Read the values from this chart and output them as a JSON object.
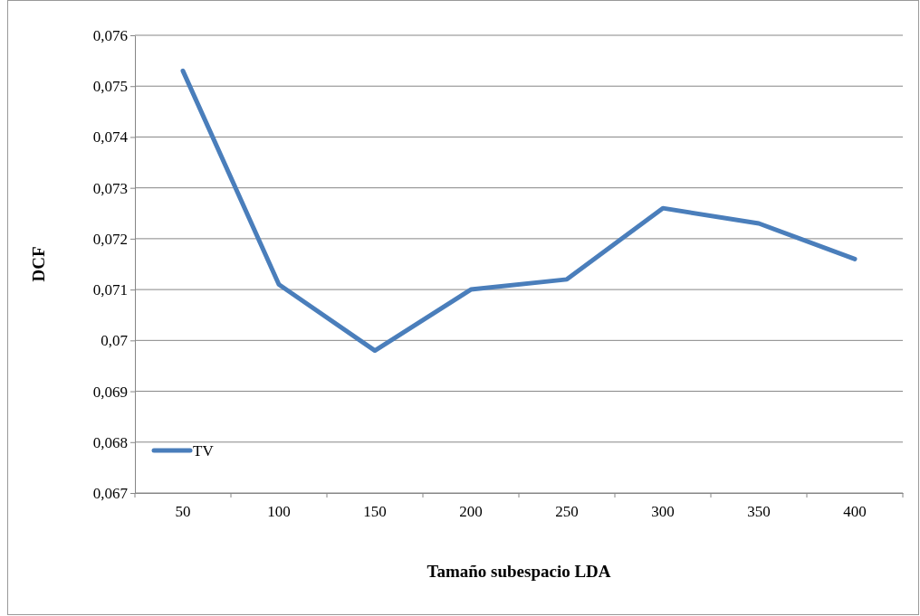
{
  "chart_data": {
    "type": "line",
    "xlabel": "Tamaño subespacio LDA",
    "ylabel": "DCF",
    "categories": [
      "50",
      "100",
      "150",
      "200",
      "250",
      "300",
      "350",
      "400"
    ],
    "series": [
      {
        "name": "TV",
        "color": "#4a7ebb",
        "values": [
          0.0753,
          0.0711,
          0.0698,
          0.071,
          0.0712,
          0.0726,
          0.0723,
          0.0716
        ]
      }
    ],
    "ylim": [
      0.067,
      0.076
    ],
    "yticks": [
      {
        "value": 0.067,
        "label": "0,067"
      },
      {
        "value": 0.068,
        "label": "0,068"
      },
      {
        "value": 0.069,
        "label": "0,069"
      },
      {
        "value": 0.07,
        "label": "0,07"
      },
      {
        "value": 0.071,
        "label": "0,071"
      },
      {
        "value": 0.072,
        "label": "0,072"
      },
      {
        "value": 0.073,
        "label": "0,073"
      },
      {
        "value": 0.074,
        "label": "0,074"
      },
      {
        "value": 0.075,
        "label": "0,075"
      },
      {
        "value": 0.076,
        "label": "0,076"
      }
    ],
    "grid": "y",
    "legend": "bottom left",
    "marker": "none",
    "line_style": "solid"
  }
}
